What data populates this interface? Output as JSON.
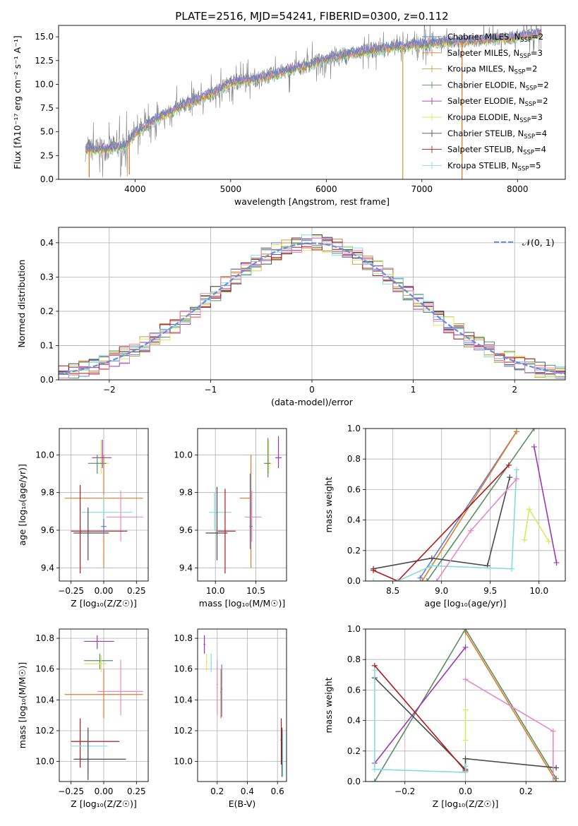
{
  "colors": {
    "s0": "#5f7fd0",
    "s1": "#e07b2b",
    "s2": "#c9a04c",
    "s3": "#5a8f63",
    "s4": "#9a3ab3",
    "s5": "#d8ea5c",
    "s6": "#4a4a4a",
    "s7": "#b01c1c",
    "s8": "#86dbe0",
    "s9": "#e58ac8",
    "flux": "#7f7f7f",
    "normal": "#6a8fd8"
  },
  "chart_data": [
    {
      "type": "line",
      "title": "PLATE=2516, MJD=54241, FIBERID=0300, z=0.112",
      "xlabel": "wavelength [Angstrom, rest frame]",
      "ylabel": "Flux [fλ10⁻¹⁷ erg cm⁻² s⁻¹ A⁻¹]",
      "xlim": [
        3200,
        8500
      ],
      "ylim": [
        0,
        16.2
      ],
      "xticks": [
        "4000",
        "5000",
        "6000",
        "7000",
        "8000"
      ],
      "yticks": [
        "0.0",
        "2.5",
        "5.0",
        "7.5",
        "10.0",
        "12.5",
        "15.0"
      ],
      "legend_position": "top-right",
      "legend": [
        {
          "label": "Chabrier MILES, N",
          "sub": "SSP",
          "suffix": "=2"
        },
        {
          "label": "Salpeter MILES, N",
          "sub": "SSP",
          "suffix": "=3"
        },
        {
          "label": "Kroupa MILES, N",
          "sub": "SSP",
          "suffix": "=2"
        },
        {
          "label": "Chabrier ELODIE, N",
          "sub": "SSP",
          "suffix": "=2"
        },
        {
          "label": "Salpeter ELODIE, N",
          "sub": "SSP",
          "suffix": "=2"
        },
        {
          "label": "Kroupa ELODIE, N",
          "sub": "SSP",
          "suffix": "=3"
        },
        {
          "label": "Chabrier STELIB, N",
          "sub": "SSP",
          "suffix": "=4"
        },
        {
          "label": "Salpeter STELIB, N",
          "sub": "SSP",
          "suffix": "=4"
        },
        {
          "label": "Kroupa STELIB, N",
          "sub": "SSP",
          "suffix": "=5"
        }
      ],
      "continuum": [
        [
          3450,
          3.1
        ],
        [
          3700,
          3.2
        ],
        [
          3900,
          3.6
        ],
        [
          4000,
          4.8
        ],
        [
          4200,
          6.2
        ],
        [
          4500,
          7.8
        ],
        [
          4800,
          9.0
        ],
        [
          5000,
          10.2
        ],
        [
          5300,
          10.6
        ],
        [
          5500,
          11.2
        ],
        [
          5800,
          12.0
        ],
        [
          6000,
          12.7
        ],
        [
          6300,
          13.3
        ],
        [
          6600,
          13.8
        ],
        [
          7000,
          14.2
        ],
        [
          7300,
          14.5
        ],
        [
          7600,
          14.6
        ],
        [
          8000,
          15.0
        ],
        [
          8250,
          15.3
        ]
      ],
      "x_range_data": [
        3480,
        8250
      ],
      "spikes": [
        [
          6800,
          0
        ],
        [
          7420,
          0
        ],
        [
          3520,
          0.2
        ],
        [
          3940,
          0.5
        ]
      ]
    },
    {
      "type": "histogram",
      "xlabel": "(data-model)/error",
      "ylabel": "Normed distribution",
      "xlim": [
        -2.5,
        2.5
      ],
      "ylim": [
        0,
        0.445
      ],
      "xticks": [
        "−2",
        "−1",
        "0",
        "1",
        "2"
      ],
      "yticks": [
        "0.0",
        "0.1",
        "0.2",
        "0.3",
        "0.4"
      ],
      "bin_width": 0.1,
      "legend": [
        "𝒩(0, 1)"
      ],
      "legend_position": "top-right"
    },
    {
      "type": "scatter",
      "xlabel": "Z [log₁₀(Z/Z☉)]",
      "ylabel": "age  [log₁₀(age/yr)]",
      "xlim": [
        -0.34,
        0.34
      ],
      "ylim": [
        9.33,
        10.14
      ],
      "xticks": [
        "−0.25",
        "0.00",
        "0.25"
      ],
      "yticks": [
        "9.4",
        "9.6",
        "9.8",
        "10.0"
      ],
      "points": [
        {
          "s": 1,
          "x": 0.0,
          "y": 9.77,
          "xe": [
            -0.3,
            0.3
          ],
          "ye": [
            9.4,
            10.0
          ]
        },
        {
          "s": 5,
          "x": -0.02,
          "y": 9.955,
          "xe": [
            -0.09,
            0.04
          ],
          "ye": [
            9.9,
            10.08
          ]
        },
        {
          "s": 4,
          "x": -0.01,
          "y": 9.985,
          "xe": [
            -0.09,
            0.06
          ],
          "ye": [
            9.93,
            10.08
          ]
        },
        {
          "s": 3,
          "x": -0.05,
          "y": 9.955,
          "xe": [
            -0.12,
            0.02
          ],
          "ye": [
            9.9,
            10.0
          ]
        },
        {
          "s": 8,
          "x": 0.0,
          "y": 9.695,
          "xe": [
            -0.17,
            0.22
          ],
          "ye": [
            9.58,
            9.79
          ]
        },
        {
          "s": 9,
          "x": 0.13,
          "y": 9.67,
          "xe": [
            0.02,
            0.3
          ],
          "ye": [
            9.54,
            9.81
          ]
        },
        {
          "s": 6,
          "x": -0.12,
          "y": 9.585,
          "xe": [
            -0.23,
            0.04
          ],
          "ye": [
            9.44,
            9.72
          ]
        },
        {
          "s": 7,
          "x": -0.18,
          "y": 9.595,
          "xe": [
            -0.25,
            0.18
          ],
          "ye": [
            9.37,
            9.84
          ]
        },
        {
          "s": 0,
          "x": 0.0,
          "y": 9.62,
          "xe": [
            -0.02,
            0.02
          ],
          "ye": [
            9.58,
            9.66
          ]
        }
      ]
    },
    {
      "type": "scatter",
      "xlabel": "mass [log₁₀(M/M☉)]",
      "ylabel": "",
      "xlim": [
        9.78,
        10.88
      ],
      "ylim": [
        9.33,
        10.14
      ],
      "xticks": [
        "10.0",
        "10.5"
      ],
      "yticks": [
        "9.4",
        "9.6",
        "9.8",
        "10.0"
      ],
      "points": [
        {
          "s": 1,
          "x": 10.44,
          "y": 9.77,
          "xe": [
            10.3,
            10.45
          ],
          "ye": [
            9.4,
            10.0
          ]
        },
        {
          "s": 5,
          "x": 10.66,
          "y": 9.955,
          "xe": [
            10.62,
            10.7
          ],
          "ye": [
            9.9,
            10.08
          ]
        },
        {
          "s": 4,
          "x": 10.78,
          "y": 9.985,
          "xe": [
            10.74,
            10.82
          ],
          "ye": [
            9.93,
            10.1
          ]
        },
        {
          "s": 3,
          "x": 10.65,
          "y": 9.955,
          "xe": [
            10.6,
            10.68
          ],
          "ye": [
            9.88,
            10.09
          ]
        },
        {
          "s": 8,
          "x": 9.99,
          "y": 9.695,
          "xe": [
            9.92,
            10.2
          ],
          "ye": [
            9.6,
            9.8
          ]
        },
        {
          "s": 9,
          "x": 10.45,
          "y": 9.67,
          "xe": [
            10.36,
            10.57
          ],
          "ye": [
            9.54,
            9.81
          ]
        },
        {
          "s": 6,
          "x": 10.02,
          "y": 9.585,
          "xe": [
            9.88,
            10.15
          ],
          "ye": [
            9.44,
            9.83
          ]
        },
        {
          "s": 7,
          "x": 10.12,
          "y": 9.595,
          "xe": [
            10.03,
            10.25
          ],
          "ye": [
            9.37,
            9.82
          ]
        },
        {
          "s": 0,
          "x": 10.43,
          "y": 9.62,
          "xe": [
            10.42,
            10.46
          ],
          "ye": [
            9.5,
            9.9
          ]
        }
      ]
    },
    {
      "type": "line",
      "xlabel": "age  [log₁₀(age/yr)]",
      "ylabel": "mass weight",
      "xlim": [
        8.22,
        10.27
      ],
      "ylim": [
        0,
        1
      ],
      "xticks": [
        "8.5",
        "9.0",
        "9.5",
        "10.0"
      ],
      "yticks": [
        "0.0",
        "0.2",
        "0.4",
        "0.6",
        "0.8",
        "1.0"
      ],
      "series": [
        {
          "s": 0,
          "x": [
            8.78,
            9.77
          ],
          "y": [
            0.02,
            0.98
          ]
        },
        {
          "s": 1,
          "x": [
            8.8,
            9.77
          ],
          "y": [
            0.0,
            0.98
          ]
        },
        {
          "s": 3,
          "x": [
            8.85,
            9.95
          ],
          "y": [
            0.0,
            1.0
          ]
        },
        {
          "s": 4,
          "x": [
            9.95,
            10.18
          ],
          "y": [
            0.88,
            0.12
          ]
        },
        {
          "s": 5,
          "x": [
            9.85,
            9.9,
            10.1
          ],
          "y": [
            0.27,
            0.47,
            0.26
          ]
        },
        {
          "s": 6,
          "x": [
            8.3,
            8.9,
            9.47,
            9.7
          ],
          "y": [
            0.08,
            0.15,
            0.1,
            0.68
          ]
        },
        {
          "s": 7,
          "x": [
            8.3,
            8.55,
            9.69
          ],
          "y": [
            0.07,
            0.0,
            0.76
          ]
        },
        {
          "s": 8,
          "x": [
            8.3,
            8.55,
            8.9,
            9.72,
            9.77
          ],
          "y": [
            0.0,
            0.0,
            0.1,
            0.08,
            0.73
          ]
        },
        {
          "s": 9,
          "x": [
            8.95,
            9.3,
            9.77
          ],
          "y": [
            0.0,
            0.33,
            0.67
          ]
        }
      ]
    },
    {
      "type": "scatter",
      "xlabel": "Z [log₁₀(Z/Z☉)]",
      "ylabel": "mass [log₁₀(M/M☉)]",
      "xlim": [
        -0.34,
        0.34
      ],
      "ylim": [
        9.87,
        10.86
      ],
      "xticks": [
        "−0.25",
        "0.00",
        "0.25"
      ],
      "yticks": [
        "10.0",
        "10.2",
        "10.4",
        "10.6",
        "10.8"
      ],
      "points": [
        {
          "s": 4,
          "x": -0.05,
          "y": 10.78,
          "xe": [
            -0.15,
            0.08
          ],
          "ye": [
            10.73,
            10.82
          ]
        },
        {
          "s": 3,
          "x": -0.03,
          "y": 10.655,
          "xe": [
            -0.15,
            0.07
          ],
          "ye": [
            10.6,
            10.7
          ]
        },
        {
          "s": 5,
          "x": -0.02,
          "y": 10.635,
          "xe": [
            -0.15,
            0.02
          ],
          "ye": [
            10.58,
            10.69
          ]
        },
        {
          "s": 9,
          "x": 0.13,
          "y": 10.455,
          "xe": [
            -0.05,
            0.3
          ],
          "ye": [
            10.3,
            10.66
          ]
        },
        {
          "s": 1,
          "x": 0.0,
          "y": 10.435,
          "xe": [
            -0.3,
            0.3
          ],
          "ye": [
            10.28,
            10.6
          ]
        },
        {
          "s": 7,
          "x": -0.18,
          "y": 10.13,
          "xe": [
            -0.25,
            0.12
          ],
          "ye": [
            9.96,
            10.28
          ]
        },
        {
          "s": 8,
          "x": -0.12,
          "y": 10.1,
          "xe": [
            -0.25,
            0.03
          ],
          "ye": [
            9.92,
            10.2
          ]
        },
        {
          "s": 6,
          "x": -0.12,
          "y": 10.015,
          "xe": [
            -0.23,
            0.17
          ],
          "ye": [
            9.88,
            10.22
          ]
        }
      ]
    },
    {
      "type": "scatter",
      "xlabel": "E(B-V)",
      "ylabel": "",
      "xlim": [
        0.07,
        0.66
      ],
      "ylim": [
        9.87,
        10.86
      ],
      "xticks": [
        "0.2",
        "0.4",
        "0.6"
      ],
      "yticks": [
        "10.0",
        "10.2",
        "10.4",
        "10.6",
        "10.8"
      ],
      "points": [
        {
          "s": 4,
          "x": 0.115,
          "y": 10.76,
          "xe": [
            0.11,
            0.12
          ],
          "ye": [
            10.7,
            10.82
          ]
        },
        {
          "s": 5,
          "x": 0.13,
          "y": 10.65,
          "xe": [
            0.125,
            0.135
          ],
          "ye": [
            10.59,
            10.7
          ]
        },
        {
          "s": 8,
          "x": 0.16,
          "y": 10.64,
          "xe": [
            0.155,
            0.165
          ],
          "ye": [
            10.58,
            10.7
          ]
        },
        {
          "s": 9,
          "x": 0.2,
          "y": 10.5,
          "xe": [
            0.195,
            0.205
          ],
          "ye": [
            10.3,
            10.66
          ]
        },
        {
          "s": 1,
          "x": 0.225,
          "y": 10.45,
          "xe": [
            0.22,
            0.23
          ],
          "ye": [
            10.28,
            10.6
          ]
        },
        {
          "s": 0,
          "x": 0.23,
          "y": 10.47,
          "xe": [
            0.225,
            0.235
          ],
          "ye": [
            10.29,
            10.63
          ]
        },
        {
          "s": 7,
          "x": 0.625,
          "y": 10.14,
          "xe": [
            0.62,
            0.63
          ],
          "ye": [
            9.98,
            10.28
          ]
        },
        {
          "s": 6,
          "x": 0.63,
          "y": 10.06,
          "xe": [
            0.625,
            0.635
          ],
          "ye": [
            9.9,
            10.22
          ]
        },
        {
          "s": 8,
          "x": 0.635,
          "y": 10.02,
          "xe": [
            0.632,
            0.638
          ],
          "ye": [
            9.9,
            10.2
          ]
        }
      ]
    },
    {
      "type": "line",
      "xlabel": "Z [log₁₀(Z/Z☉)]",
      "ylabel": "mass weight",
      "xlim": [
        -0.33,
        0.33
      ],
      "ylim": [
        0,
        1
      ],
      "xticks": [
        "−0.2",
        "0.0",
        "0.2"
      ],
      "yticks": [
        "0.0",
        "0.2",
        "0.4",
        "0.6",
        "0.8",
        "1.0"
      ],
      "series": [
        {
          "s": 1,
          "x": [
            0.0,
            0.3
          ],
          "y": [
            0.98,
            0.0
          ]
        },
        {
          "s": 3,
          "x": [
            -0.3,
            0.0,
            0.3
          ],
          "y": [
            0.0,
            1.0,
            0.02
          ]
        },
        {
          "s": 4,
          "x": [
            -0.3,
            0.0
          ],
          "y": [
            0.12,
            0.88
          ]
        },
        {
          "s": 5,
          "x": [
            0.0,
            0.0
          ],
          "y": [
            0.27,
            0.47
          ]
        },
        {
          "s": 6,
          "x": [
            -0.3,
            0.0,
            0.0,
            0.3
          ],
          "y": [
            0.68,
            0.08,
            0.15,
            0.09
          ]
        },
        {
          "s": 7,
          "x": [
            -0.3,
            0.0
          ],
          "y": [
            0.76,
            0.07
          ]
        },
        {
          "s": 8,
          "x": [
            -0.3,
            -0.3,
            0.0,
            0.0
          ],
          "y": [
            0.73,
            0.08,
            0.06,
            0.1
          ]
        },
        {
          "s": 9,
          "x": [
            0.0,
            0.29,
            0.29
          ],
          "y": [
            0.67,
            0.33,
            0.0
          ]
        }
      ]
    }
  ]
}
